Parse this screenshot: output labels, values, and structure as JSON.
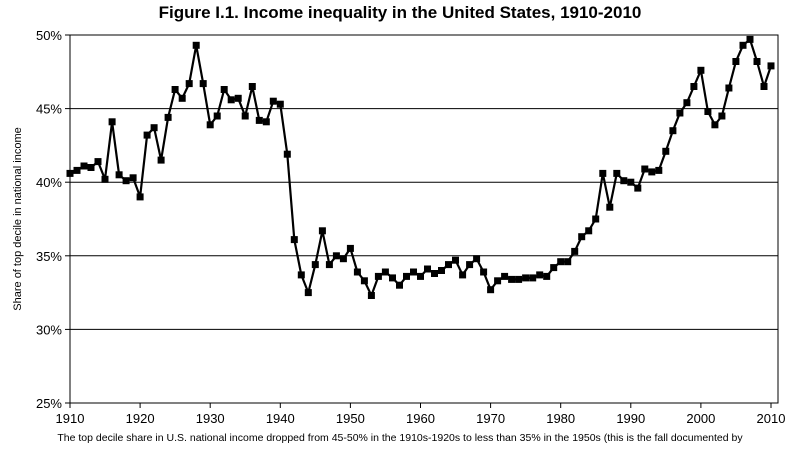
{
  "chart_data": {
    "type": "line",
    "title": "Figure I.1. Income inequality in the United States, 1910-2010",
    "ylabel": "Share of top decile in national income",
    "xlabel": "",
    "caption": "The top decile share in U.S. national income dropped from 45-50% in the 1910s-1920s to less than 35% in the 1950s (this is the fall documented by",
    "xlim": [
      1910,
      2011
    ],
    "ylim": [
      0.25,
      0.5
    ],
    "x_ticks": [
      "1910",
      "1920",
      "1930",
      "1940",
      "1950",
      "1960",
      "1970",
      "1980",
      "1990",
      "2000",
      "2010"
    ],
    "y_ticks": [
      "25%",
      "30%",
      "35%",
      "40%",
      "45%",
      "50%"
    ],
    "y_tick_values": [
      0.25,
      0.3,
      0.35,
      0.4,
      0.45,
      0.5
    ],
    "grid": "horizontal",
    "marker": "square",
    "line_color": "#000000",
    "series": [
      {
        "x": [
          1910,
          1911,
          1912,
          1913,
          1914,
          1915,
          1916,
          1917,
          1918,
          1919,
          1920,
          1921,
          1922,
          1923,
          1924,
          1925,
          1926,
          1927,
          1928,
          1929,
          1930,
          1931,
          1932,
          1933,
          1934,
          1935,
          1936,
          1937,
          1938,
          1939,
          1940,
          1941,
          1942,
          1943,
          1944,
          1945,
          1946,
          1947,
          1948,
          1949,
          1950,
          1951,
          1952,
          1953,
          1954,
          1955,
          1956,
          1957,
          1958,
          1959,
          1960,
          1961,
          1962,
          1963,
          1964,
          1965,
          1966,
          1967,
          1968,
          1969,
          1970,
          1971,
          1972,
          1973,
          1974,
          1975,
          1976,
          1977,
          1978,
          1979,
          1980,
          1981,
          1982,
          1983,
          1984,
          1985,
          1986,
          1987,
          1988,
          1989,
          1990,
          1991,
          1992,
          1993,
          1994,
          1995,
          1996,
          1997,
          1998,
          1999,
          2000,
          2001,
          2002,
          2003,
          2004,
          2005,
          2006,
          2007,
          2008,
          2009,
          2010
        ],
        "values": [
          0.406,
          0.408,
          0.411,
          0.41,
          0.414,
          0.402,
          0.441,
          0.405,
          0.401,
          0.403,
          0.39,
          0.432,
          0.437,
          0.415,
          0.444,
          0.463,
          0.457,
          0.467,
          0.493,
          0.467,
          0.439,
          0.445,
          0.463,
          0.456,
          0.457,
          0.445,
          0.465,
          0.442,
          0.441,
          0.455,
          0.453,
          0.419,
          0.361,
          0.337,
          0.325,
          0.344,
          0.367,
          0.344,
          0.35,
          0.348,
          0.355,
          0.339,
          0.333,
          0.323,
          0.336,
          0.339,
          0.335,
          0.33,
          0.336,
          0.339,
          0.336,
          0.341,
          0.338,
          0.34,
          0.344,
          0.347,
          0.337,
          0.344,
          0.348,
          0.339,
          0.327,
          0.333,
          0.336,
          0.334,
          0.334,
          0.335,
          0.335,
          0.337,
          0.336,
          0.342,
          0.346,
          0.346,
          0.353,
          0.363,
          0.367,
          0.375,
          0.406,
          0.383,
          0.406,
          0.401,
          0.4,
          0.396,
          0.409,
          0.407,
          0.408,
          0.421,
          0.435,
          0.447,
          0.454,
          0.465,
          0.476,
          0.448,
          0.439,
          0.445,
          0.464,
          0.482,
          0.493,
          0.497,
          0.482,
          0.465,
          0.479
        ]
      }
    ]
  }
}
